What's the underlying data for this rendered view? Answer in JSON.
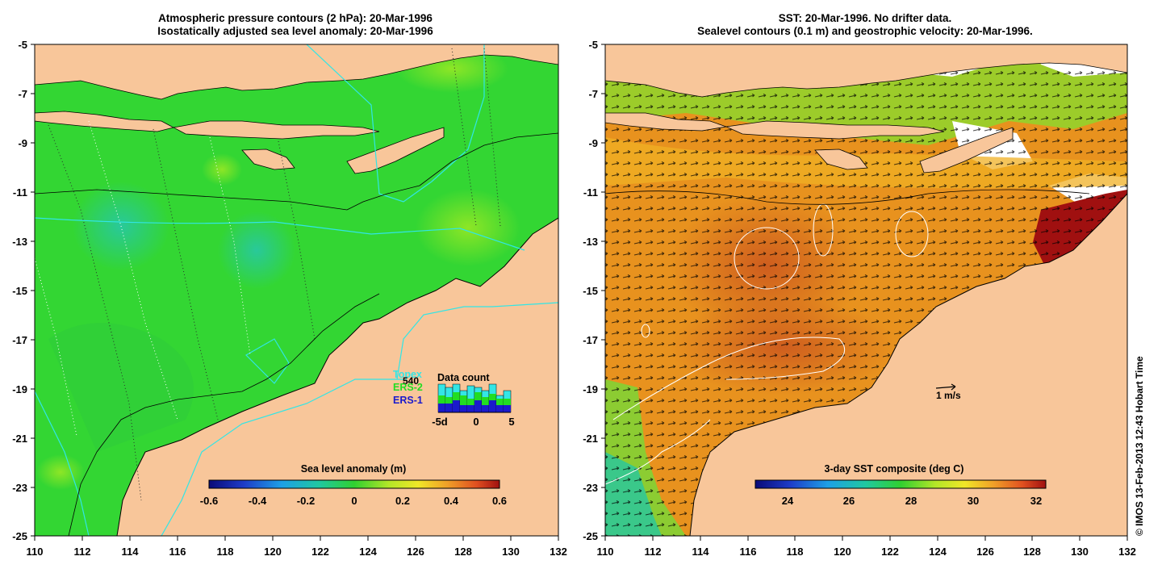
{
  "left_panel": {
    "title_line1": "Atmospheric pressure contours (2 hPa): 20-Mar-1996",
    "title_line2": "Isostatically adjusted sea level anomaly: 20-Mar-1996",
    "colorbar_title": "Sea level anomaly (m)",
    "colorbar_ticks": [
      "-0.6",
      "-0.4",
      "-0.2",
      "0",
      "0.2",
      "0.4",
      "0.6"
    ],
    "legend": {
      "topex": "Topex",
      "topex_count": "540",
      "ers2": "ERS-2",
      "ers1": "ERS-1",
      "data_count_title": "Data count",
      "axis_ticks": [
        "-5d",
        "0",
        "5"
      ],
      "colors": {
        "topex": "#33e6e6",
        "ers2": "#22dd22",
        "ers1": "#1a1acc"
      }
    }
  },
  "right_panel": {
    "title_line1": "SST: 20-Mar-1996. No drifter data.",
    "title_line2": "Sealevel contours (0.1 m) and geostrophic velocity: 20-Mar-1996.",
    "colorbar_title": "3-day SST composite (deg C)",
    "colorbar_ticks": [
      "24",
      "26",
      "28",
      "30",
      "32"
    ],
    "velocity_scale": "1 m/s"
  },
  "axes": {
    "lat_ticks": [
      "-5",
      "-7",
      "-9",
      "-11",
      "-13",
      "-15",
      "-17",
      "-19",
      "-21",
      "-23",
      "-25"
    ],
    "lon_ticks": [
      "110",
      "112",
      "114",
      "116",
      "118",
      "120",
      "122",
      "124",
      "126",
      "128",
      "130",
      "132"
    ]
  },
  "credit": "© IMOS 13-Feb-2013 12:43 Hobart Time",
  "colors": {
    "land": "#f8c69a",
    "sea_green": "#33d633",
    "sst_orange": "#e8921e",
    "sst_red": "#a01010"
  }
}
